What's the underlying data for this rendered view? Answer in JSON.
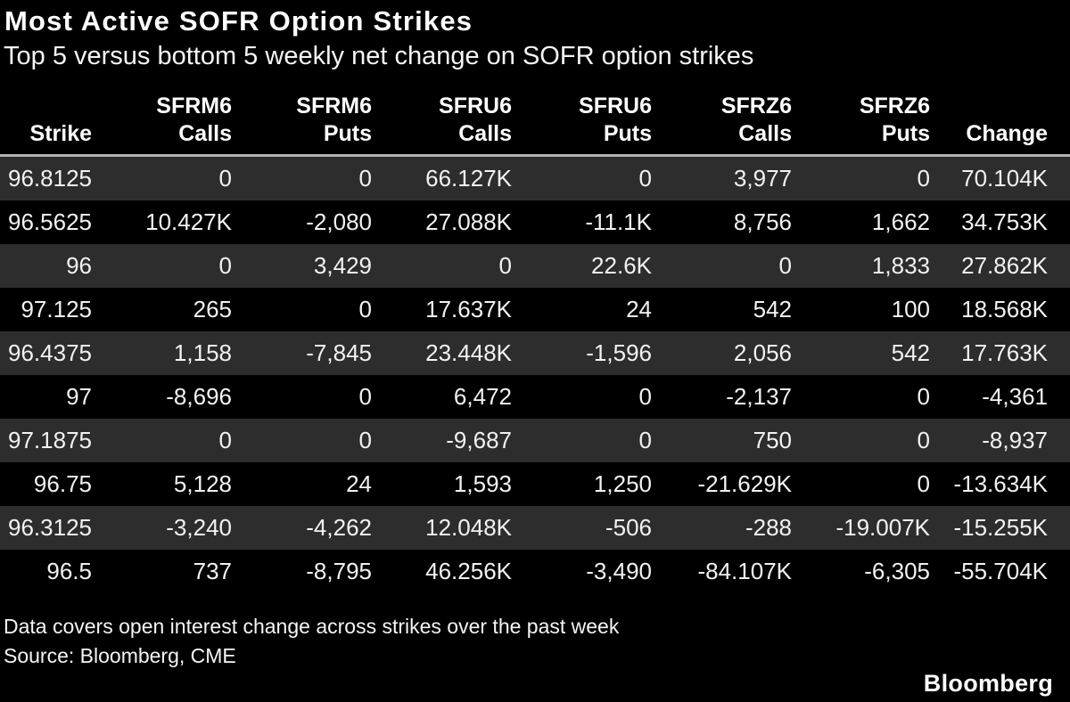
{
  "header": {
    "title": "Most Active SOFR Option Strikes",
    "subtitle": "Top 5 versus bottom 5 weekly net change on SOFR option strikes"
  },
  "chart_data": {
    "type": "table",
    "title": "Most Active SOFR Option Strikes",
    "subtitle": "Top 5 versus bottom 5 weekly net change on SOFR option strikes",
    "columns": [
      {
        "group": "",
        "label": "Strike"
      },
      {
        "group": "SFRM6",
        "label": "Calls"
      },
      {
        "group": "SFRM6",
        "label": "Puts"
      },
      {
        "group": "SFRU6",
        "label": "Calls"
      },
      {
        "group": "SFRU6",
        "label": "Puts"
      },
      {
        "group": "SFRZ6",
        "label": "Calls"
      },
      {
        "group": "SFRZ6",
        "label": "Puts"
      },
      {
        "group": "",
        "label": "Change"
      }
    ],
    "rows": [
      [
        "96.8125",
        "0",
        "0",
        "66.127K",
        "0",
        "3,977",
        "0",
        "70.104K"
      ],
      [
        "96.5625",
        "10.427K",
        "-2,080",
        "27.088K",
        "-11.1K",
        "8,756",
        "1,662",
        "34.753K"
      ],
      [
        "96",
        "0",
        "3,429",
        "0",
        "22.6K",
        "0",
        "1,833",
        "27.862K"
      ],
      [
        "97.125",
        "265",
        "0",
        "17.637K",
        "24",
        "542",
        "100",
        "18.568K"
      ],
      [
        "96.4375",
        "1,158",
        "-7,845",
        "23.448K",
        "-1,596",
        "2,056",
        "542",
        "17.763K"
      ],
      [
        "97",
        "-8,696",
        "0",
        "6,472",
        "0",
        "-2,137",
        "0",
        "-4,361"
      ],
      [
        "97.1875",
        "0",
        "0",
        "-9,687",
        "0",
        "750",
        "0",
        "-8,937"
      ],
      [
        "96.75",
        "5,128",
        "24",
        "1,593",
        "1,250",
        "-21.629K",
        "0",
        "-13.634K"
      ],
      [
        "96.3125",
        "-3,240",
        "-4,262",
        "12.048K",
        "-506",
        "-288",
        "-19.007K",
        "-15.255K"
      ],
      [
        "96.5",
        "737",
        "-8,795",
        "46.256K",
        "-3,490",
        "-84.107K",
        "-6,305",
        "-55.704K"
      ]
    ]
  },
  "footer": {
    "note": "Data covers open interest change across strikes over the past week",
    "source": "Source: Bloomberg, CME",
    "brand": "Bloomberg"
  },
  "colors": {
    "background": "#000000",
    "row_stripe": "#2d2d2d",
    "text": "#fafafa",
    "header_rule": "#b3b3b3"
  }
}
